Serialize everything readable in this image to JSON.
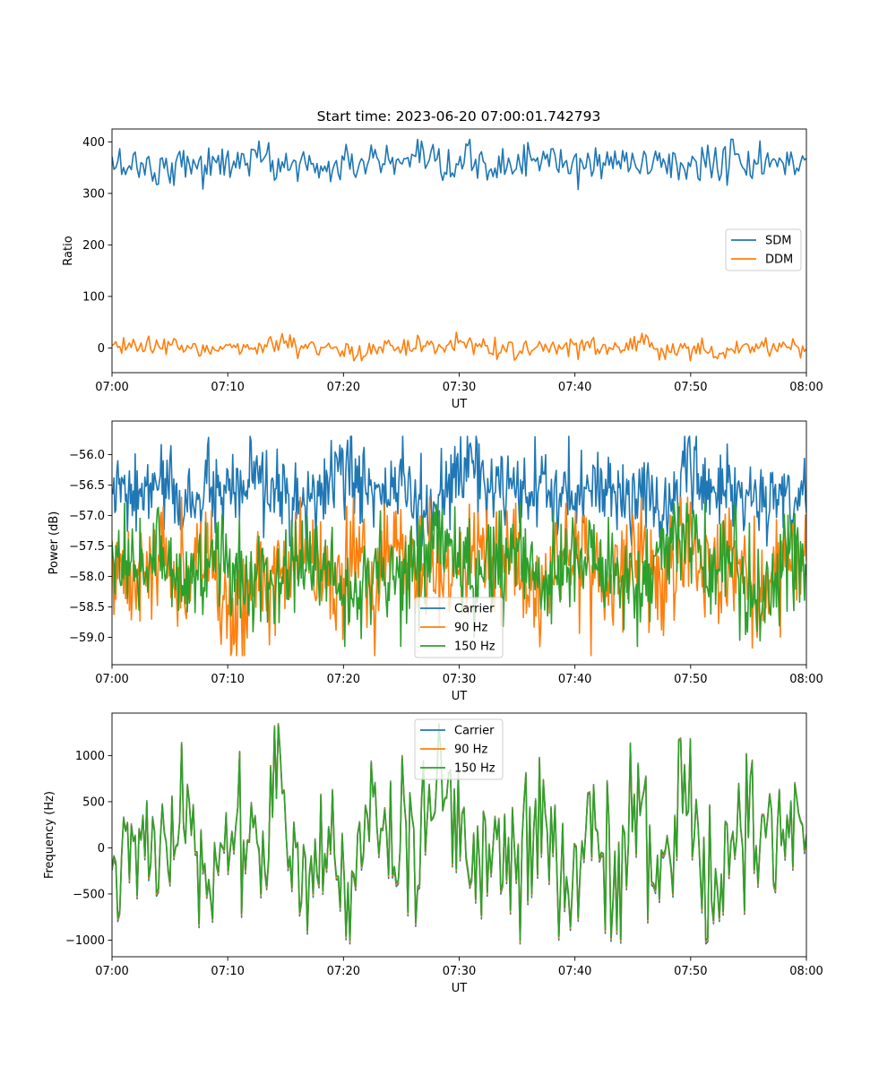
{
  "figure": {
    "title": "Start time: 2023-06-20 07:00:01.742793"
  },
  "chart_data": [
    {
      "type": "line",
      "xlabel": "UT",
      "ylabel": "Ratio",
      "xlim": [
        "07:00",
        "08:00"
      ],
      "ylim": [
        -48,
        425
      ],
      "x_ticks": [
        "07:00",
        "07:10",
        "07:20",
        "07:30",
        "07:40",
        "07:50",
        "08:00"
      ],
      "y_ticks": [
        0,
        100,
        200,
        300,
        400
      ],
      "y_tick_labels": [
        "0",
        "100",
        "200",
        "300",
        "400"
      ],
      "legend": "center-right",
      "grid": false,
      "series": [
        {
          "name": "SDM",
          "color": "#1f77b4",
          "n_points": 360,
          "values_sampled": [
            352,
            360,
            335,
            370,
            345,
            365,
            378,
            350,
            360,
            340,
            355,
            372,
            348,
            362,
            333,
            370,
            345,
            358,
            380,
            340,
            356,
            368,
            350,
            372,
            345,
            360,
            375,
            348,
            362,
            355
          ],
          "range": [
            305,
            405
          ],
          "mean": 358
        },
        {
          "name": "DDM",
          "color": "#ff7f0e",
          "n_points": 360,
          "values_sampled": [
            0,
            10,
            -5,
            15,
            -10,
            5,
            0,
            12,
            -8,
            4,
            -15,
            8,
            0,
            18,
            -6,
            10,
            -3,
            6,
            -12,
            9,
            0,
            -5,
            14,
            -4,
            2,
            -20,
            8,
            0,
            12,
            -6
          ],
          "range": [
            -25,
            32
          ],
          "mean": 0
        }
      ]
    },
    {
      "type": "line",
      "xlabel": "UT",
      "ylabel": "Power (dB)",
      "xlim": [
        "07:00",
        "08:00"
      ],
      "ylim": [
        -59.45,
        -55.45
      ],
      "x_ticks": [
        "07:00",
        "07:10",
        "07:20",
        "07:30",
        "07:40",
        "07:50",
        "08:00"
      ],
      "y_ticks": [
        -59.0,
        -58.5,
        -58.0,
        -57.5,
        -57.0,
        -56.5,
        -56.0
      ],
      "y_tick_labels": [
        "−59.0",
        "−58.5",
        "−58.0",
        "−57.5",
        "−57.0",
        "−56.5",
        "−56.0"
      ],
      "legend": "bottom-center",
      "grid": false,
      "series": [
        {
          "name": "Carrier",
          "color": "#1f77b4",
          "n_points": 720,
          "values_sampled": [
            -56.6,
            -56.8,
            -56.3,
            -57.0,
            -56.5,
            -56.9,
            -56.2,
            -56.7,
            -57.1,
            -56.4,
            -56.0,
            -56.8,
            -56.3,
            -57.2,
            -56.6,
            -55.8,
            -56.5,
            -56.9,
            -56.4,
            -57.0,
            -56.2,
            -56.7,
            -56.5,
            -57.3,
            -55.8,
            -56.6,
            -56.4,
            -57.0,
            -56.7,
            -56.5
          ],
          "range": [
            -57.5,
            -55.7
          ],
          "mean": -56.65
        },
        {
          "name": "90 Hz",
          "color": "#ff7f0e",
          "n_points": 720,
          "values_sampled": [
            -57.8,
            -58.3,
            -57.2,
            -58.6,
            -57.5,
            -59.3,
            -57.9,
            -58.1,
            -57.4,
            -58.5,
            -57.7,
            -58.2,
            -57.0,
            -58.4,
            -57.6,
            -57.3,
            -58.0,
            -57.8,
            -58.6,
            -57.2,
            -57.9,
            -58.3,
            -57.5,
            -58.7,
            -57.1,
            -58.0,
            -57.6,
            -58.5,
            -57.8,
            -57.9
          ],
          "range": [
            -59.3,
            -56.7
          ],
          "mean": -57.85
        },
        {
          "name": "150 Hz",
          "color": "#2ca02c",
          "n_points": 720,
          "values_sampled": [
            -57.6,
            -58.1,
            -57.4,
            -58.2,
            -57.8,
            -57.5,
            -58.4,
            -57.9,
            -57.3,
            -58.0,
            -59.0,
            -57.7,
            -58.3,
            -57.6,
            -57.2,
            -58.1,
            -57.8,
            -57.4,
            -58.5,
            -57.9,
            -57.5,
            -58.2,
            -58.9,
            -57.6,
            -57.0,
            -58.0,
            -57.7,
            -59.1,
            -57.5,
            -57.6
          ],
          "range": [
            -59.15,
            -56.8
          ],
          "mean": -57.8
        }
      ]
    },
    {
      "type": "line",
      "xlabel": "UT",
      "ylabel": "Frequency (Hz)",
      "xlim": [
        "07:00",
        "08:00"
      ],
      "ylim": [
        -1180,
        1460
      ],
      "x_ticks": [
        "07:00",
        "07:10",
        "07:20",
        "07:30",
        "07:40",
        "07:50",
        "08:00"
      ],
      "y_ticks": [
        -1000,
        -500,
        0,
        500,
        1000
      ],
      "y_tick_labels": [
        "−1000",
        "−500",
        "0",
        "500",
        "1000"
      ],
      "legend": "top-center",
      "grid": false,
      "series": [
        {
          "name": "Carrier",
          "color": "#1f77b4",
          "n_points": 360,
          "offset_from_150hz": -40
        },
        {
          "name": "90 Hz",
          "color": "#ff7f0e",
          "n_points": 360,
          "offset_from_150hz": -20
        },
        {
          "name": "150 Hz",
          "color": "#2ca02c",
          "n_points": 360,
          "values_sampled": [
            -900,
            400,
            -200,
            600,
            -700,
            300,
            -100,
            1050,
            -500,
            200,
            -950,
            1000,
            -300,
            500,
            1330,
            -800,
            100,
            -600,
            700,
            -1000,
            300,
            -200,
            800,
            -500,
            950,
            -900,
            400,
            -300,
            600,
            0
          ],
          "range": [
            -1000,
            1330
          ],
          "mean": 40
        }
      ]
    }
  ]
}
